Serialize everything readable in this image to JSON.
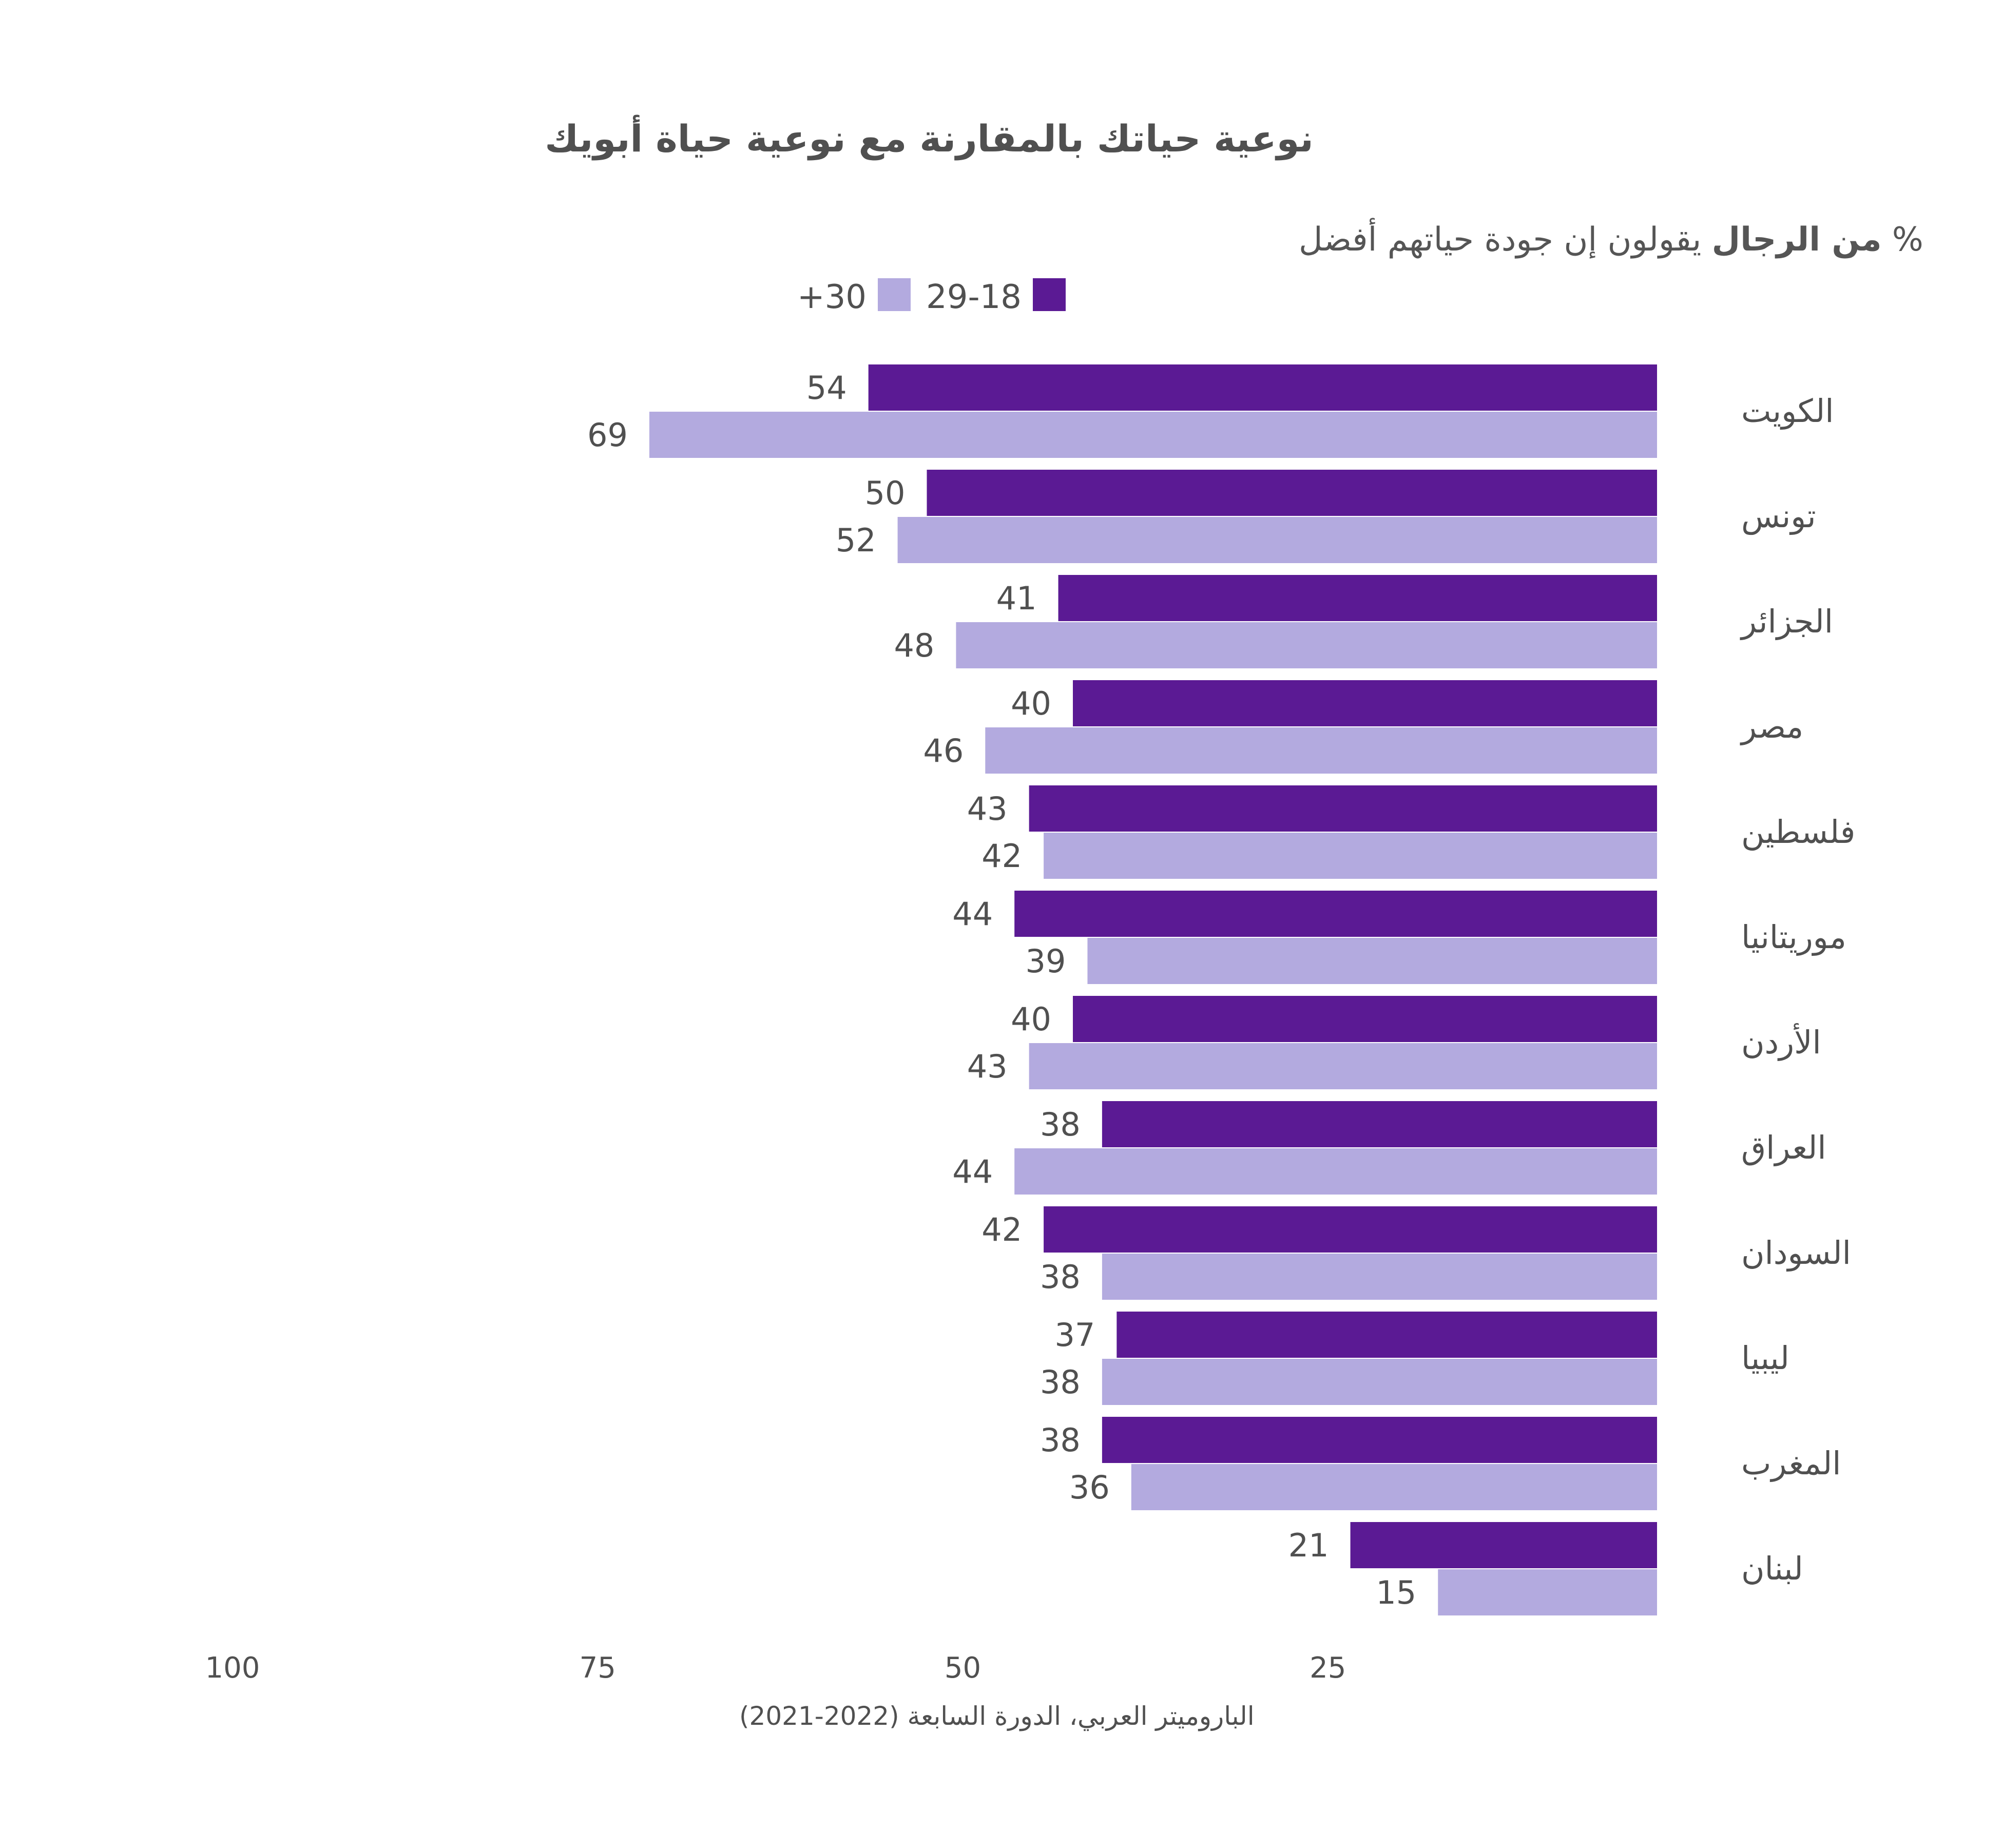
{
  "chart_data": {
    "type": "bar",
    "orientation": "horizontal",
    "direction": "rtl",
    "title": "نوعية حياتك بالمقارنة مع نوعية حياة أبويك",
    "subtitle_bold": "من الرجال",
    "subtitle_rest": "يقولون إن جودة حياتهم أفضل",
    "subtitle_pct": "%",
    "categories": [
      "الكويت",
      "تونس",
      "الجزائر",
      "مصر",
      "فلسطين",
      "موريتانيا",
      "الأردن",
      "العراق",
      "السودان",
      "ليبيا",
      "المغرب",
      "لبنان"
    ],
    "series": [
      {
        "name": "29-18",
        "color": "#5b1a94",
        "values": [
          54,
          50,
          41,
          40,
          43,
          44,
          40,
          38,
          42,
          37,
          38,
          21
        ]
      },
      {
        "name": "+30",
        "color": "#b3aadf",
        "values": [
          69,
          52,
          48,
          46,
          42,
          39,
          43,
          44,
          38,
          38,
          36,
          15
        ]
      }
    ],
    "xlim": [
      0,
      100
    ],
    "x_ticks": [
      "100",
      "75",
      "50",
      "25"
    ],
    "legend_placement": "top",
    "grid": false,
    "source": "الباروميتر العربي، الدورة السابعة (2022-2021)"
  }
}
